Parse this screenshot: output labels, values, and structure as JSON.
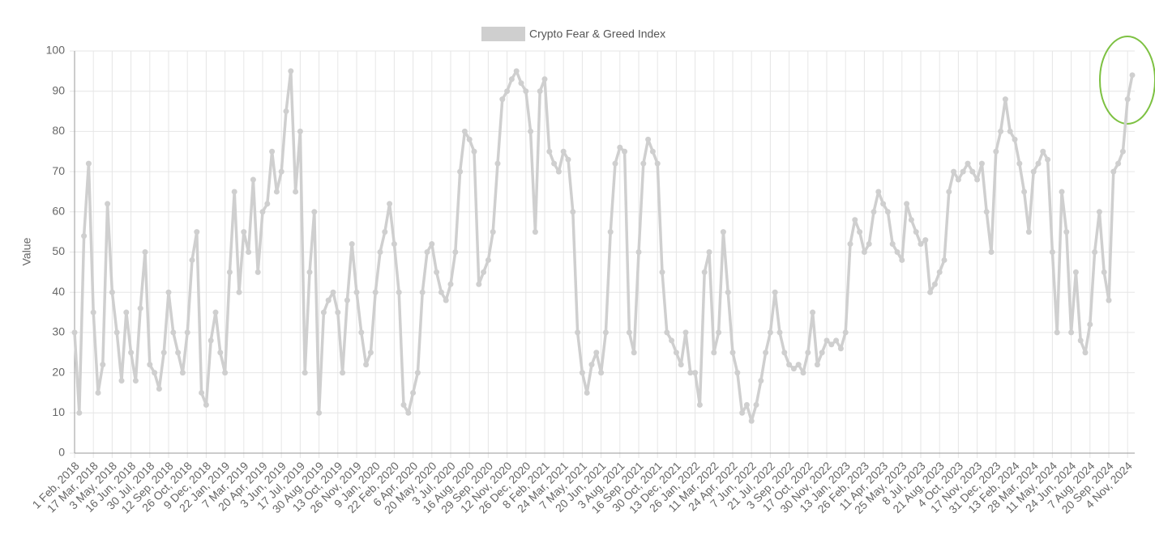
{
  "chart_data": {
    "type": "line",
    "y_label": "Value",
    "categories": [
      "1 Feb, 2018",
      null,
      null,
      null,
      "17 Mar, 2018",
      null,
      null,
      null,
      "3 May, 2018",
      null,
      null,
      null,
      "16 Jun, 2018",
      null,
      null,
      null,
      "30 Jul, 2018",
      null,
      null,
      null,
      "12 Sep, 2018",
      null,
      null,
      null,
      "26 Oct, 2018",
      null,
      null,
      null,
      "9 Dec, 2018",
      null,
      null,
      null,
      "22 Jan, 2019",
      null,
      null,
      null,
      "7 Mar, 2019",
      null,
      null,
      null,
      "20 Apr, 2019",
      null,
      null,
      null,
      "3 Jun, 2019",
      null,
      null,
      null,
      "17 Jul, 2019",
      null,
      null,
      null,
      "30 Aug, 2019",
      null,
      null,
      null,
      "13 Oct, 2019",
      null,
      null,
      null,
      "26 Nov, 2019",
      null,
      null,
      null,
      "9 Jan, 2020",
      null,
      null,
      null,
      "22 Feb, 2020",
      null,
      null,
      null,
      "6 Apr, 2020",
      null,
      null,
      null,
      "20 May, 2020",
      null,
      null,
      null,
      "3 Jul, 2020",
      null,
      null,
      null,
      "16 Aug, 2020",
      null,
      null,
      null,
      "29 Sep, 2020",
      null,
      null,
      null,
      "12 Nov, 2020",
      null,
      null,
      null,
      "26 Dec, 2020",
      null,
      null,
      null,
      "8 Feb, 2021",
      null,
      null,
      null,
      "24 Mar, 2021",
      null,
      null,
      null,
      "7 May, 2021",
      null,
      null,
      null,
      "20 Jun, 2021",
      null,
      null,
      null,
      "3 Aug, 2021",
      null,
      null,
      null,
      "16 Sep, 2021",
      null,
      null,
      null,
      "30 Oct, 2021",
      null,
      null,
      null,
      "13 Dec, 2021",
      null,
      null,
      null,
      "26 Jan, 2022",
      null,
      null,
      null,
      "11 Mar, 2022",
      null,
      null,
      null,
      "24 Apr, 2022",
      null,
      null,
      null,
      "7 Jun, 2022",
      null,
      null,
      null,
      "21 Jul, 2022",
      null,
      null,
      null,
      "3 Sep, 2022",
      null,
      null,
      null,
      "17 Oct, 2022",
      null,
      null,
      null,
      "30 Nov, 2022",
      null,
      null,
      null,
      "13 Jan, 2023",
      null,
      null,
      null,
      "26 Feb, 2023",
      null,
      null,
      null,
      "11 Apr, 2023",
      null,
      null,
      null,
      "25 May, 2023",
      null,
      null,
      null,
      "8 Jul, 2023",
      null,
      null,
      null,
      "21 Aug, 2023",
      null,
      null,
      null,
      "4 Oct, 2023",
      null,
      null,
      null,
      "17 Nov, 2023",
      null,
      null,
      null,
      "31 Dec, 2023",
      null,
      null,
      null,
      "13 Feb, 2024",
      null,
      null,
      null,
      "28 Mar, 2024",
      null,
      null,
      null,
      "11 May, 2024",
      null,
      null,
      null,
      "24 Jun, 2024",
      null,
      null,
      null,
      "7 Aug, 2024",
      null,
      null,
      null,
      "20 Sep, 2024",
      null,
      null,
      null,
      "4 Nov, 2024",
      null
    ],
    "series": [
      {
        "name": "Crypto Fear & Greed Index",
        "color": "#cfcfcf",
        "values": [
          30,
          10,
          54,
          72,
          35,
          15,
          22,
          62,
          40,
          30,
          18,
          35,
          25,
          18,
          36,
          50,
          22,
          20,
          16,
          25,
          40,
          30,
          25,
          20,
          30,
          48,
          55,
          15,
          12,
          28,
          35,
          25,
          20,
          45,
          65,
          40,
          55,
          50,
          68,
          45,
          60,
          62,
          75,
          65,
          70,
          85,
          95,
          65,
          80,
          20,
          45,
          60,
          10,
          35,
          38,
          40,
          35,
          20,
          38,
          52,
          40,
          30,
          22,
          25,
          40,
          50,
          55,
          62,
          52,
          40,
          12,
          10,
          15,
          20,
          40,
          50,
          52,
          45,
          40,
          38,
          42,
          50,
          70,
          80,
          78,
          75,
          42,
          45,
          48,
          55,
          72,
          88,
          90,
          93,
          95,
          92,
          90,
          80,
          55,
          90,
          93,
          75,
          72,
          70,
          75,
          73,
          60,
          30,
          20,
          15,
          22,
          25,
          20,
          30,
          55,
          72,
          76,
          75,
          30,
          25,
          50,
          72,
          78,
          75,
          72,
          45,
          30,
          28,
          25,
          22,
          30,
          20,
          20,
          12,
          45,
          50,
          25,
          30,
          55,
          40,
          25,
          20,
          10,
          12,
          8,
          12,
          18,
          25,
          30,
          40,
          30,
          25,
          22,
          21,
          22,
          20,
          25,
          35,
          22,
          25,
          28,
          27,
          28,
          26,
          30,
          52,
          58,
          55,
          50,
          52,
          60,
          65,
          62,
          60,
          52,
          50,
          48,
          62,
          58,
          55,
          52,
          53,
          40,
          42,
          45,
          48,
          65,
          70,
          68,
          70,
          72,
          70,
          68,
          72,
          60,
          50,
          75,
          80,
          88,
          80,
          78,
          72,
          65,
          55,
          70,
          72,
          75,
          73,
          50,
          30,
          65,
          55,
          30,
          45,
          28,
          25,
          32,
          50,
          60,
          45,
          38,
          70,
          72,
          75,
          88,
          94
        ]
      }
    ],
    "ylim": [
      0,
      100
    ],
    "yticks": [
      0,
      10,
      20,
      30,
      40,
      50,
      60,
      70,
      80,
      90,
      100
    ],
    "grid": true
  }
}
